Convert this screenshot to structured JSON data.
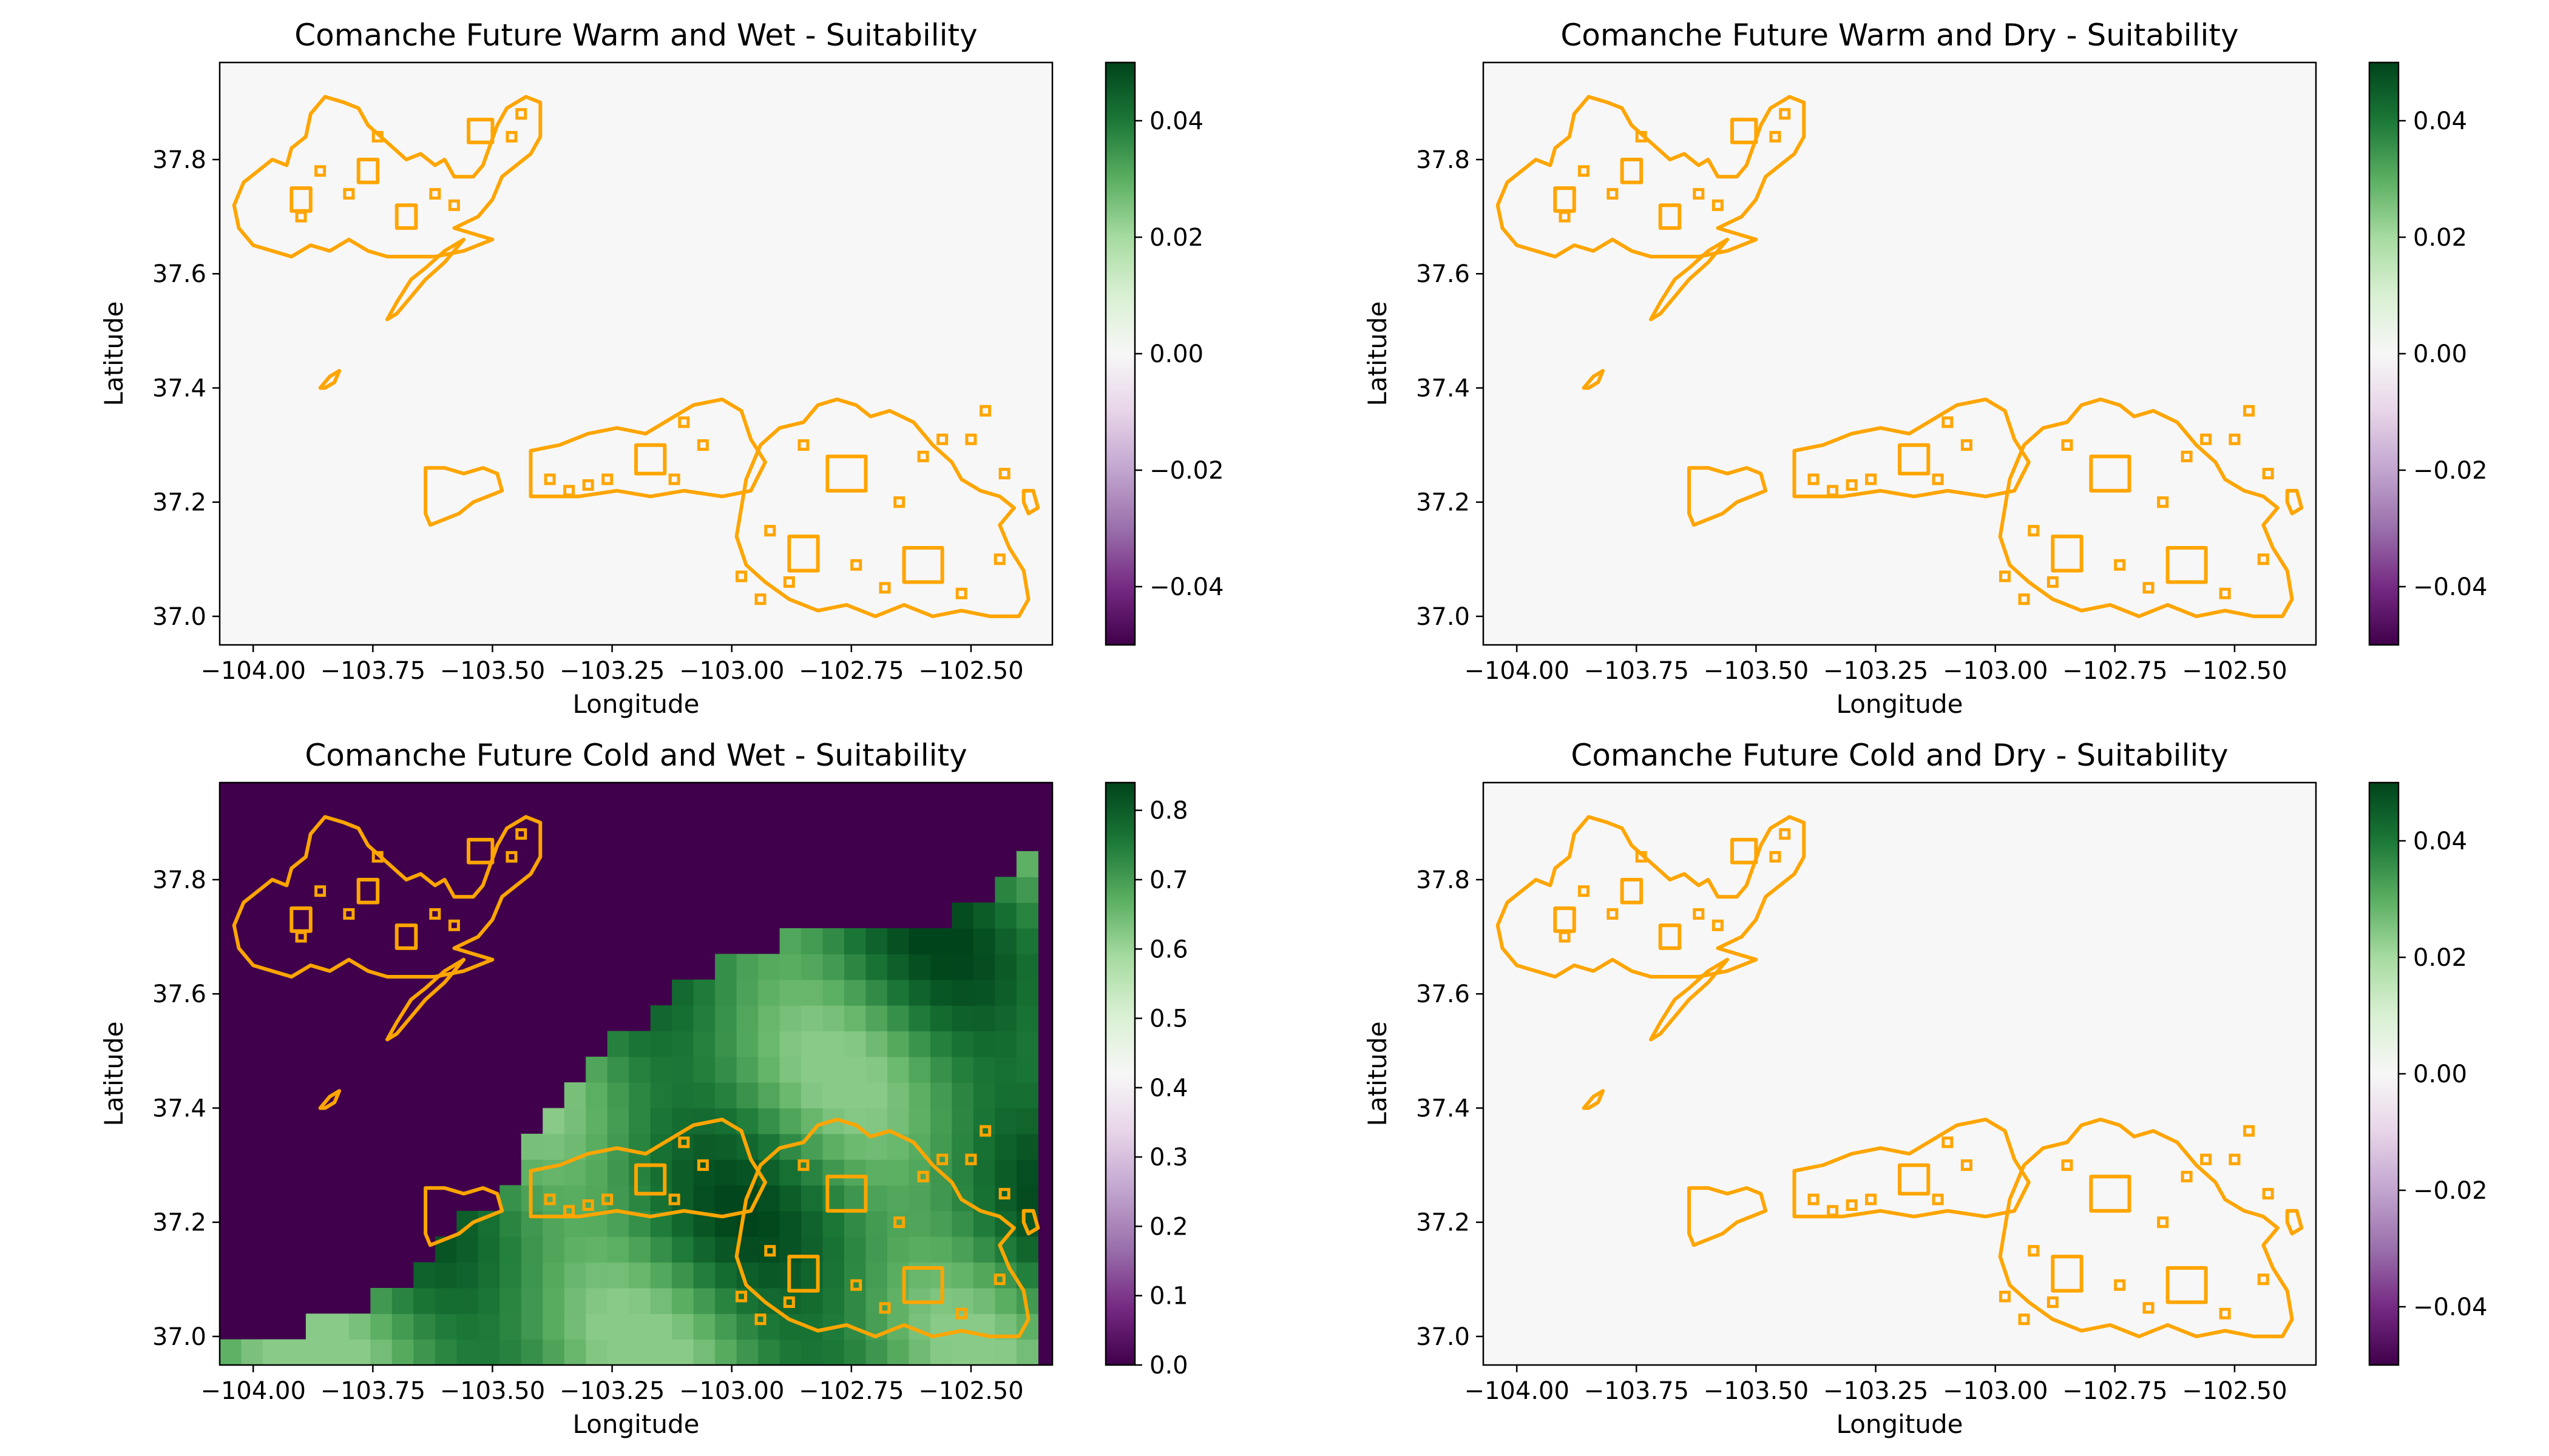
{
  "figure": {
    "background": "#ffffff",
    "boundary_color": "#ffa500",
    "empty_fill": "#f7f7f7"
  },
  "chart_data": [
    {
      "type": "heatmap",
      "title": "Comanche Future Warm and Wet - Suitability",
      "xlabel": "Longitude",
      "ylabel": "Latitude",
      "xlim": [
        -104.07,
        -102.33
      ],
      "ylim": [
        36.95,
        37.97
      ],
      "xticks": [
        -104.0,
        -103.75,
        -103.5,
        -103.25,
        -103.0,
        -102.75,
        -102.5
      ],
      "xtick_labels": [
        "−104.00",
        "−103.75",
        "−103.50",
        "−103.25",
        "−103.00",
        "−102.75",
        "−102.50"
      ],
      "yticks": [
        37.0,
        37.2,
        37.4,
        37.6,
        37.8
      ],
      "ytick_labels": [
        "37.0",
        "37.2",
        "37.4",
        "37.6",
        "37.8"
      ],
      "colormap": "PRGn",
      "colorbar_range": [
        -0.05,
        0.05
      ],
      "colorbar_ticks": [
        -0.04,
        -0.02,
        0.0,
        0.02,
        0.04
      ],
      "colorbar_tick_labels": [
        "−0.04",
        "−0.02",
        "0.00",
        "0.02",
        "0.04"
      ],
      "suitability_field": "none (uniform 0)"
    },
    {
      "type": "heatmap",
      "title": "Comanche Future Warm and Dry - Suitability",
      "xlabel": "Longitude",
      "ylabel": "Latitude",
      "xlim": [
        -104.07,
        -102.33
      ],
      "ylim": [
        36.95,
        37.97
      ],
      "xticks": [
        -104.0,
        -103.75,
        -103.5,
        -103.25,
        -103.0,
        -102.75,
        -102.5
      ],
      "xtick_labels": [
        "−104.00",
        "−103.75",
        "−103.50",
        "−103.25",
        "−103.00",
        "−102.75",
        "−102.50"
      ],
      "yticks": [
        37.0,
        37.2,
        37.4,
        37.6,
        37.8
      ],
      "ytick_labels": [
        "37.0",
        "37.2",
        "37.4",
        "37.6",
        "37.8"
      ],
      "colormap": "PRGn",
      "colorbar_range": [
        -0.05,
        0.05
      ],
      "colorbar_ticks": [
        -0.04,
        -0.02,
        0.0,
        0.02,
        0.04
      ],
      "colorbar_tick_labels": [
        "−0.04",
        "−0.02",
        "0.00",
        "0.02",
        "0.04"
      ],
      "suitability_field": "none (uniform 0)"
    },
    {
      "type": "heatmap",
      "title": "Comanche Future Cold and Wet - Suitability",
      "xlabel": "Longitude",
      "ylabel": "Latitude",
      "xlim": [
        -104.07,
        -102.33
      ],
      "ylim": [
        36.95,
        37.97
      ],
      "xticks": [
        -104.0,
        -103.75,
        -103.5,
        -103.25,
        -103.0,
        -102.75,
        -102.5
      ],
      "xtick_labels": [
        "−104.00",
        "−103.75",
        "−103.50",
        "−103.25",
        "−103.00",
        "−102.75",
        "−102.50"
      ],
      "yticks": [
        37.0,
        37.2,
        37.4,
        37.6,
        37.8
      ],
      "ytick_labels": [
        "37.0",
        "37.2",
        "37.4",
        "37.6",
        "37.8"
      ],
      "colormap": "PRGn",
      "colorbar_range": [
        0.0,
        0.84
      ],
      "colorbar_ticks": [
        0.0,
        0.1,
        0.2,
        0.3,
        0.4,
        0.5,
        0.6,
        0.7,
        0.8
      ],
      "colorbar_tick_labels": [
        "0.0",
        "0.1",
        "0.2",
        "0.3",
        "0.4",
        "0.5",
        "0.6",
        "0.7",
        "0.8"
      ],
      "suitability_field": "suitable (~0.62-0.84) south-east of a diagonal boundary, 0 elsewhere"
    },
    {
      "type": "heatmap",
      "title": "Comanche Future Cold and Dry - Suitability",
      "xlabel": "Longitude",
      "ylabel": "Latitude",
      "xlim": [
        -104.07,
        -102.33
      ],
      "ylim": [
        36.95,
        37.97
      ],
      "xticks": [
        -104.0,
        -103.75,
        -103.5,
        -103.25,
        -103.0,
        -102.75,
        -102.5
      ],
      "xtick_labels": [
        "−104.00",
        "−103.75",
        "−103.50",
        "−103.25",
        "−103.00",
        "−102.75",
        "−102.50"
      ],
      "yticks": [
        37.0,
        37.2,
        37.4,
        37.6,
        37.8
      ],
      "ytick_labels": [
        "37.0",
        "37.2",
        "37.4",
        "37.6",
        "37.8"
      ],
      "colormap": "PRGn",
      "colorbar_range": [
        -0.05,
        0.05
      ],
      "colorbar_ticks": [
        -0.04,
        -0.02,
        0.0,
        0.02,
        0.04
      ],
      "colorbar_tick_labels": [
        "−0.04",
        "−0.02",
        "0.00",
        "0.02",
        "0.04"
      ],
      "suitability_field": "none (uniform 0)"
    }
  ]
}
